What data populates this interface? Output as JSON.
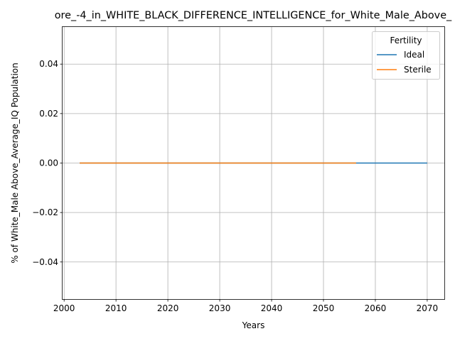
{
  "chart_data": {
    "type": "line",
    "title": "ore_-4_in_WHITE_BLACK_DIFFERENCE_INTELLIGENCE_for_White_Male_Above_",
    "xlabel": "Years",
    "ylabel": "% of White_Male Above_Average_IQ Population",
    "xlim": [
      1999.7,
      2073.3
    ],
    "ylim": [
      -0.055,
      0.055
    ],
    "xticks": [
      2000,
      2010,
      2020,
      2030,
      2040,
      2050,
      2060,
      2070
    ],
    "yticks": [
      -0.04,
      -0.02,
      0.0,
      0.02,
      0.04
    ],
    "ytick_labels": [
      "−0.04",
      "−0.02",
      "0.00",
      "0.02",
      "0.04"
    ],
    "grid": true,
    "legend": {
      "title": "Fertility",
      "position": "upper-right"
    },
    "series": [
      {
        "name": "Ideal",
        "color": "#1f77b4",
        "x": [
          2003,
          2070
        ],
        "y": [
          0,
          0
        ]
      },
      {
        "name": "Sterile",
        "color": "#ff7f0e",
        "x": [
          2003,
          2056.3
        ],
        "y": [
          0,
          0
        ]
      }
    ]
  }
}
